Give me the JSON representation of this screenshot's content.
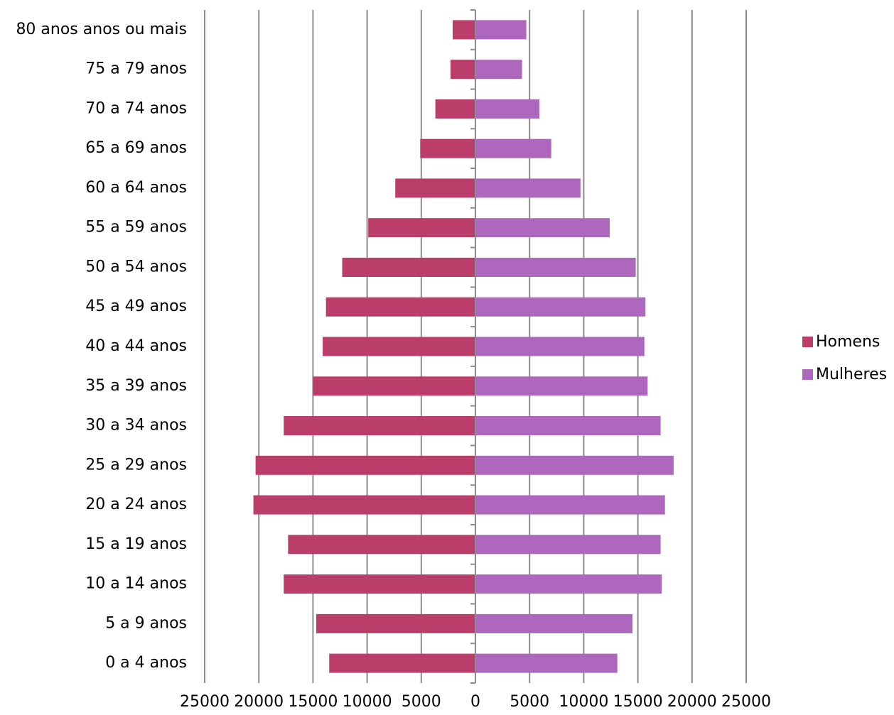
{
  "chart_data": {
    "type": "bar",
    "orientation": "horizontal",
    "categories": [
      "0 a 4 anos",
      "5 a 9 anos",
      "10 a 14 anos",
      "15 a 19 anos",
      "20 a 24 anos",
      "25 a 29 anos",
      "30 a 34 anos",
      "35 a 39 anos",
      "40 a 44 anos",
      "45 a 49 anos",
      "50 a 54 anos",
      "55 a 59 anos",
      "60 a 64 anos",
      "65 a 69 anos",
      "70 a 74 anos",
      "75 a 79 anos",
      "80 anos anos ou mais"
    ],
    "series": [
      {
        "name": "Homens",
        "color": "#bb3d69",
        "values": [
          13500,
          14700,
          17700,
          17300,
          20500,
          20300,
          17700,
          15000,
          14100,
          13800,
          12300,
          9900,
          7400,
          5100,
          3700,
          2300,
          2100
        ]
      },
      {
        "name": "Mulheres",
        "color": "#ad67bd",
        "values": [
          13100,
          14500,
          17200,
          17100,
          17500,
          18300,
          17100,
          15900,
          15600,
          15700,
          14800,
          12400,
          9700,
          7000,
          5900,
          4300,
          4700
        ]
      }
    ],
    "xlim": [
      -25000,
      25000
    ],
    "xticks": [
      -25000,
      -20000,
      -15000,
      -10000,
      -5000,
      0,
      5000,
      10000,
      15000,
      20000,
      25000
    ],
    "tick_labels": [
      "25000",
      "20000",
      "15000",
      "10000",
      "5000",
      "0",
      "5000",
      "10000",
      "15000",
      "20000",
      "25000"
    ],
    "grid": true,
    "legend_position": "right",
    "title": "",
    "xlabel": "",
    "ylabel": ""
  }
}
